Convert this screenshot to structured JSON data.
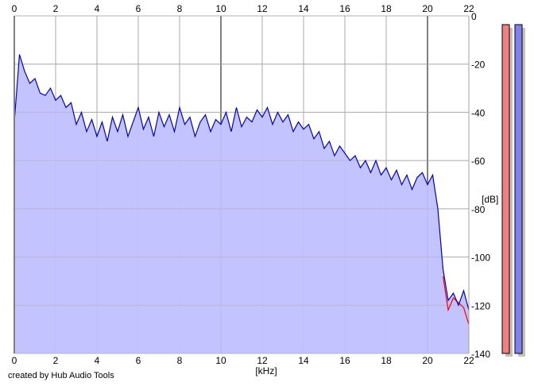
{
  "chart_data": {
    "type": "area",
    "xlabel": "[kHz]",
    "ylabel": "[dB]",
    "xlim": [
      0,
      22
    ],
    "ylim": [
      -140,
      0
    ],
    "x_ticks": [
      0,
      2,
      4,
      6,
      8,
      10,
      12,
      14,
      16,
      18,
      20,
      22
    ],
    "y_ticks": [
      0,
      -20,
      -40,
      -60,
      -80,
      -100,
      -120,
      -140
    ],
    "grid": true,
    "fill_color": "#c0c0ff",
    "series": [
      {
        "color": "#0000cc",
        "x": [
          0,
          0.25,
          0.5,
          0.75,
          1,
          1.25,
          1.5,
          1.75,
          2,
          2.25,
          2.5,
          2.75,
          3,
          3.25,
          3.5,
          3.75,
          4,
          4.25,
          4.5,
          4.75,
          5,
          5.25,
          5.5,
          5.75,
          6,
          6.25,
          6.5,
          6.75,
          7,
          7.25,
          7.5,
          7.75,
          8,
          8.25,
          8.5,
          8.75,
          9,
          9.25,
          9.5,
          9.75,
          10,
          10.25,
          10.5,
          10.75,
          11,
          11.25,
          11.5,
          11.75,
          12,
          12.25,
          12.5,
          12.75,
          13,
          13.25,
          13.5,
          13.75,
          14,
          14.25,
          14.5,
          14.75,
          15,
          15.25,
          15.5,
          15.75,
          16,
          16.25,
          16.5,
          16.75,
          17,
          17.25,
          17.5,
          17.75,
          18,
          18.25,
          18.5,
          18.75,
          19,
          19.25,
          19.5,
          19.75,
          20,
          20.25,
          20.5,
          20.75,
          21,
          21.25,
          21.5,
          21.75,
          22
        ],
        "y": [
          -44,
          -16,
          -23,
          -28,
          -26,
          -32,
          -33,
          -30,
          -35,
          -33,
          -38,
          -36,
          -45,
          -40,
          -48,
          -43,
          -50,
          -44,
          -52,
          -42,
          -48,
          -41,
          -50,
          -44,
          -38,
          -47,
          -42,
          -50,
          -40,
          -46,
          -41,
          -48,
          -38,
          -45,
          -42,
          -50,
          -44,
          -41,
          -48,
          -43,
          -45,
          -40,
          -48,
          -38,
          -46,
          -42,
          -44,
          -39,
          -42,
          -38,
          -45,
          -40,
          -44,
          -41,
          -48,
          -44,
          -47,
          -45,
          -51,
          -48,
          -55,
          -52,
          -58,
          -54,
          -57,
          -60,
          -58,
          -63,
          -60,
          -65,
          -60,
          -66,
          -63,
          -68,
          -64,
          -70,
          -66,
          -72,
          -67,
          -65,
          -70,
          -66,
          -80,
          -105,
          -118,
          -115,
          -120,
          -114,
          -122
        ]
      },
      {
        "color": "#ff0000",
        "x": [
          20.75,
          21,
          21.25,
          21.5,
          21.75,
          22
        ],
        "y": [
          -108,
          -122,
          -117,
          -119,
          -121,
          -128
        ]
      }
    ],
    "meters": [
      {
        "color": "#f08080"
      },
      {
        "color": "#8080f0"
      }
    ]
  },
  "footer": {
    "credit": "created by Hub Audio Tools"
  }
}
